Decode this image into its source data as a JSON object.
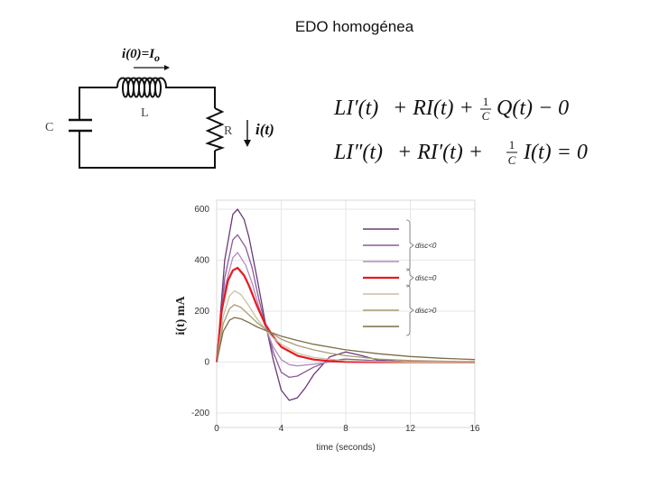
{
  "slide": {
    "title": "EDO homogénea"
  },
  "circuit": {
    "initial_current_label": "i(0)=I",
    "initial_current_sub": "o",
    "capacitor_label": "C",
    "inductor_label": "L",
    "resistor_label": "R",
    "current_label": "i(t)"
  },
  "equations": {
    "eq1": {
      "t1": "LI′(t)",
      "t2": "+ RI(t) +",
      "num": "1",
      "den": "C",
      "t3": "Q(t) − 0"
    },
    "eq2": {
      "t1": "LI″(t)",
      "t2": "+ RI′(t) +",
      "num": "1",
      "den": "C",
      "t3": "I(t) = 0"
    }
  },
  "colors": {
    "red": "#e8191f",
    "purple_dark": "#6a3a78",
    "purple_mid": "#8c5a98",
    "purple_light": "#b48cc0",
    "olive_light": "#c8c0a0",
    "olive_mid": "#a89c74",
    "olive_dark": "#7c6c48",
    "grid": "#e6e6e6"
  },
  "chart_data": {
    "type": "line",
    "title": "",
    "xlabel": "time (seconds)",
    "ylabel": "i(t) mA",
    "xlim": [
      0,
      16
    ],
    "ylim": [
      -200,
      600
    ],
    "xticks": [
      0,
      4,
      8,
      12,
      16
    ],
    "yticks": [
      -200,
      0,
      200,
      400,
      600
    ],
    "grid": true,
    "legend_position": "top-right",
    "legend_groups": [
      {
        "label": "disc<0",
        "series_count": 3
      },
      {
        "label": "disc=0",
        "series_count": 1
      },
      {
        "label": "disc>0",
        "series_count": 3
      }
    ],
    "series": [
      {
        "color": "#6a3a78",
        "x": [
          0,
          0.5,
          1,
          1.3,
          1.7,
          2,
          2.5,
          3,
          3.5,
          4,
          4.5,
          5,
          5.5,
          6,
          7,
          8,
          9,
          10,
          12,
          16
        ],
        "y": [
          0,
          400,
          580,
          600,
          560,
          490,
          330,
          160,
          10,
          -110,
          -150,
          -140,
          -100,
          -50,
          20,
          40,
          25,
          8,
          0,
          0
        ]
      },
      {
        "color": "#8c5a98",
        "x": [
          0,
          0.5,
          1,
          1.3,
          1.8,
          2.2,
          2.6,
          3,
          3.5,
          4,
          4.5,
          5,
          6,
          7,
          8,
          10,
          12,
          16
        ],
        "y": [
          0,
          330,
          480,
          500,
          450,
          370,
          250,
          150,
          40,
          -40,
          -60,
          -55,
          -20,
          5,
          12,
          5,
          0,
          0
        ]
      },
      {
        "color": "#b48cc0",
        "x": [
          0,
          0.5,
          1,
          1.3,
          1.8,
          2.2,
          2.6,
          3,
          3.5,
          4,
          4.5,
          5,
          6,
          7,
          8,
          10,
          12,
          16
        ],
        "y": [
          0,
          290,
          410,
          430,
          380,
          310,
          220,
          140,
          60,
          10,
          -10,
          -15,
          -8,
          0,
          3,
          1,
          0,
          0
        ]
      },
      {
        "color": "#e8191f",
        "x": [
          0,
          0.3,
          0.7,
          1,
          1.3,
          1.7,
          2,
          2.5,
          3,
          3.5,
          4,
          5,
          6,
          7,
          8,
          10,
          12,
          16
        ],
        "y": [
          0,
          200,
          320,
          360,
          370,
          340,
          300,
          220,
          150,
          100,
          60,
          25,
          10,
          4,
          1,
          0,
          0,
          0
        ]
      },
      {
        "color": "#c8c0a0",
        "x": [
          0,
          0.4,
          0.8,
          1.1,
          1.5,
          2,
          2.5,
          3,
          3.5,
          4,
          5,
          6,
          8,
          10,
          12,
          16
        ],
        "y": [
          0,
          180,
          260,
          280,
          265,
          220,
          170,
          130,
          95,
          70,
          35,
          18,
          5,
          2,
          0,
          0
        ]
      },
      {
        "color": "#a89c74",
        "x": [
          0,
          0.4,
          0.8,
          1.1,
          1.5,
          2,
          2.5,
          3,
          4,
          5,
          6,
          7,
          8,
          10,
          12,
          16
        ],
        "y": [
          0,
          150,
          210,
          225,
          215,
          185,
          155,
          130,
          90,
          65,
          48,
          35,
          25,
          12,
          6,
          1
        ]
      },
      {
        "color": "#7c6c48",
        "x": [
          0,
          0.4,
          0.8,
          1.1,
          1.5,
          2,
          2.5,
          3,
          4,
          5,
          6,
          8,
          10,
          12,
          14,
          16
        ],
        "y": [
          0,
          120,
          165,
          175,
          170,
          155,
          138,
          125,
          102,
          85,
          70,
          48,
          33,
          22,
          15,
          10
        ]
      }
    ]
  }
}
